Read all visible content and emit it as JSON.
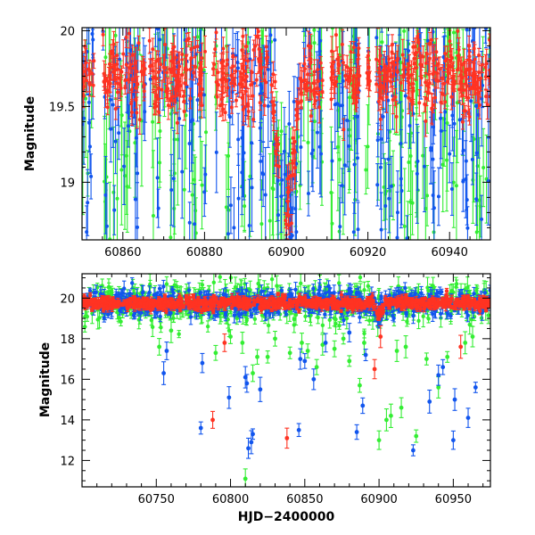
{
  "series_colors": {
    "green": "#33ee33",
    "blue": "#1155ee",
    "red": "#ff3322"
  },
  "chart_data": [
    {
      "name": "zoom-panel",
      "type": "scatter",
      "xlabel": "",
      "ylabel": "Magnitude",
      "xlim": [
        60850,
        60950
      ],
      "ylim": [
        20.02,
        18.62
      ],
      "y_inverted": true,
      "x_ticks": [
        60860,
        60880,
        60900,
        60920,
        60940
      ],
      "x_tick_labels": [
        "60860",
        "60880",
        "60900",
        "60920",
        "60940"
      ],
      "x_minor_step": 5,
      "y_ticks": [
        19,
        19.5,
        20
      ],
      "y_tick_labels": [
        "19",
        "19.5",
        "20"
      ],
      "y_minor_step": 0.1,
      "baseline_mag": 19.7,
      "observing_gaps": [
        [
          60853,
          60855
        ],
        [
          60865.5,
          60866.5
        ],
        [
          60880.5,
          60882
        ],
        [
          60909,
          60911
        ],
        [
          60918,
          60919.5
        ],
        [
          60920.5,
          60922
        ]
      ],
      "flare": {
        "center": 60900,
        "peak_mag": 18.75,
        "half_width": 4
      },
      "series": [
        {
          "name": "green",
          "points": 240,
          "scatter": 0.38,
          "error": 0.3
        },
        {
          "name": "blue",
          "points": 320,
          "scatter": 0.3,
          "error": 0.22
        },
        {
          "name": "red",
          "points": 560,
          "scatter": 0.12,
          "error": 0.07
        }
      ]
    },
    {
      "name": "full-panel",
      "type": "scatter",
      "xlabel": "HJD−2400000",
      "ylabel": "Magnitude",
      "xlim": [
        60700,
        60975
      ],
      "ylim": [
        21.2,
        10.7
      ],
      "y_inverted": true,
      "x_ticks": [
        60750,
        60800,
        60850,
        60900,
        60950
      ],
      "x_tick_labels": [
        "60750",
        "60800",
        "60850",
        "60900",
        "60950"
      ],
      "x_minor_step": 10,
      "y_ticks": [
        12,
        14,
        16,
        18,
        20
      ],
      "y_tick_labels": [
        "12",
        "14",
        "16",
        "18",
        "20"
      ],
      "y_minor_step": 0.5,
      "baseline_mag": 19.75,
      "flare": {
        "center": 60900,
        "peak_mag": 19.1,
        "half_width": 4
      },
      "series": [
        {
          "name": "green",
          "points": 520,
          "scatter": 0.45,
          "error": 0.35
        },
        {
          "name": "blue",
          "points": 620,
          "scatter": 0.3,
          "error": 0.25
        },
        {
          "name": "red",
          "points": 900,
          "scatter": 0.14,
          "error": 0.12
        }
      ],
      "outliers": [
        {
          "series": "green",
          "points": [
            [
              60810,
              11.1
            ],
            [
              60752,
              17.6
            ],
            [
              60760,
              18.4
            ],
            [
              60790,
              17.3
            ],
            [
              60800,
              18.1
            ],
            [
              60808,
              17.8
            ],
            [
              60815,
              16.3
            ],
            [
              60818,
              17.1
            ],
            [
              60825,
              17.1
            ],
            [
              60830,
              18.0
            ],
            [
              60840,
              17.3
            ],
            [
              60848,
              17.8
            ],
            [
              60852,
              17.4
            ],
            [
              60858,
              16.6
            ],
            [
              60862,
              17.7
            ],
            [
              60870,
              17.5
            ],
            [
              60876,
              18.0
            ],
            [
              60880,
              16.9
            ],
            [
              60887,
              15.7
            ],
            [
              60890,
              17.8
            ],
            [
              60900,
              13.0
            ],
            [
              60905,
              14.0
            ],
            [
              60908,
              14.2
            ],
            [
              60912,
              17.4
            ],
            [
              60915,
              14.6
            ],
            [
              60918,
              17.6
            ],
            [
              60925,
              13.2
            ],
            [
              60932,
              17.0
            ],
            [
              60940,
              15.6
            ],
            [
              60946,
              17.1
            ],
            [
              60958,
              17.8
            ],
            [
              60963,
              18.1
            ]
          ]
        },
        {
          "series": "blue",
          "points": [
            [
              60755,
              16.3
            ],
            [
              60757,
              17.4
            ],
            [
              60780,
              13.6
            ],
            [
              60781,
              16.8
            ],
            [
              60799,
              15.1
            ],
            [
              60812,
              12.6
            ],
            [
              60814,
              12.9
            ],
            [
              60815,
              13.3
            ],
            [
              60810,
              16.1
            ],
            [
              60811,
              15.8
            ],
            [
              60820,
              15.5
            ],
            [
              60846,
              13.5
            ],
            [
              60847,
              17.0
            ],
            [
              60850,
              16.9
            ],
            [
              60856,
              16.0
            ],
            [
              60864,
              17.8
            ],
            [
              60880,
              18.3
            ],
            [
              60885,
              13.4
            ],
            [
              60889,
              14.7
            ],
            [
              60891,
              17.2
            ],
            [
              60923,
              12.5
            ],
            [
              60934,
              14.9
            ],
            [
              60940,
              16.2
            ],
            [
              60943,
              16.6
            ],
            [
              60950,
              13.0
            ],
            [
              60951,
              15.0
            ],
            [
              60960,
              14.1
            ],
            [
              60965,
              15.6
            ]
          ]
        },
        {
          "series": "red",
          "points": [
            [
              60788,
              14.0
            ],
            [
              60796,
              17.8
            ],
            [
              60838,
              13.1
            ],
            [
              60897,
              16.5
            ],
            [
              60901,
              18.1
            ],
            [
              60955,
              17.6
            ]
          ]
        }
      ]
    }
  ]
}
